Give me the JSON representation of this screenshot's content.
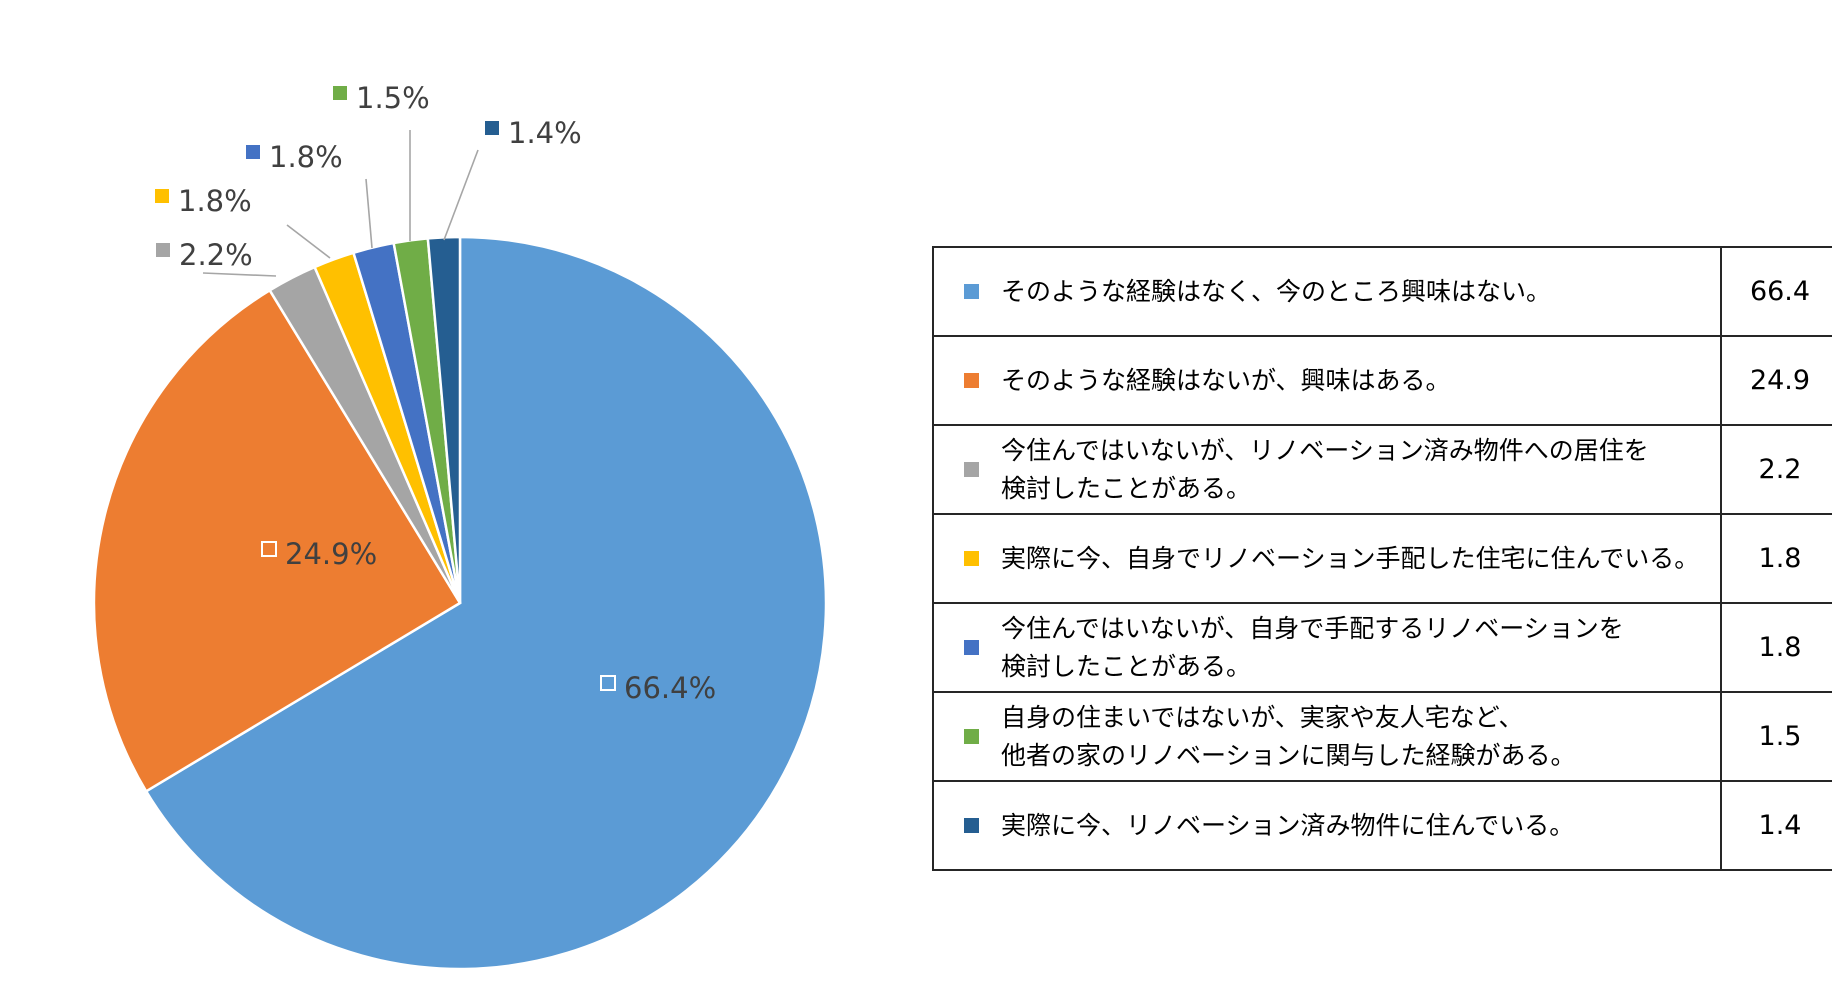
{
  "chart_data": {
    "type": "pie",
    "slices": [
      {
        "label": "そのような経験はなく、今のところ興味はない。",
        "value": 66.4,
        "display": "66.4%",
        "table_value": "66.4",
        "color": "#5b9bd5"
      },
      {
        "label": "そのような経験はないが、興味はある。",
        "value": 24.9,
        "display": "24.9%",
        "table_value": "24.9",
        "color": "#ed7d31"
      },
      {
        "label": "今住んではいないが、リノベーション済み物件への居住を\n検討したことがある。",
        "value": 2.2,
        "display": "2.2%",
        "table_value": "2.2",
        "color": "#a5a5a5"
      },
      {
        "label": "実際に今、自身でリノベーション手配した住宅に住んでいる。",
        "value": 1.8,
        "display": "1.8%",
        "table_value": "1.8",
        "color": "#ffc000"
      },
      {
        "label": "今住んではいないが、自身で手配するリノベーションを\n検討したことがある。",
        "value": 1.8,
        "display": "1.8%",
        "table_value": "1.8",
        "color": "#4472c4"
      },
      {
        "label": "自身の住まいではないが、実家や友人宅など、\n他者の家のリノベーションに関与した経験がある。",
        "value": 1.5,
        "display": "1.5%",
        "table_value": "1.5",
        "color": "#70ad47"
      },
      {
        "label": "実際に今、リノベーション済み物件に住んでいる。",
        "value": 1.4,
        "display": "1.4%",
        "table_value": "1.4",
        "color": "#255e91"
      }
    ],
    "start_angle": "12 o'clock",
    "direction": "clockwise",
    "legend_placement": "right (table)"
  }
}
